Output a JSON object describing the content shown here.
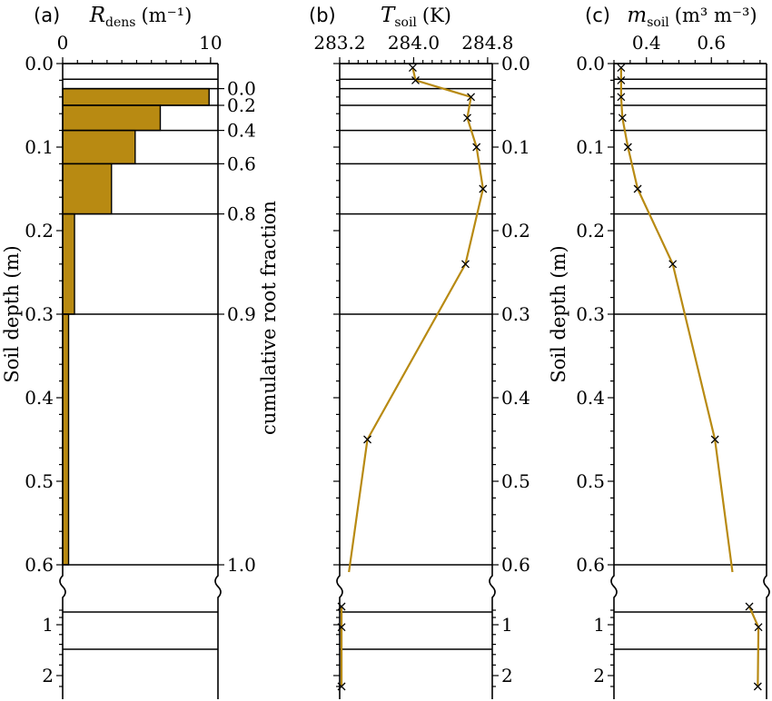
{
  "colors": {
    "accent": "#b88a12",
    "axis": "#000000"
  },
  "marker_symbol": "×",
  "chart_data": [
    {
      "panel": "(a)",
      "type": "bar",
      "title": "R_dens (m⁻¹)",
      "title_main": "R",
      "title_sub": "dens",
      "title_unit": "(m⁻¹)",
      "ylabel": "Soil depth (m)",
      "ylabel_right": "cumulative root fraction",
      "xticks": [
        "0",
        "10"
      ],
      "xlim": [
        0,
        10.5
      ],
      "layers": [
        {
          "top": 0.0,
          "bottom": 0.01,
          "value": 0.0
        },
        {
          "top": 0.01,
          "bottom": 0.03,
          "value": 0.0
        },
        {
          "top": 0.03,
          "bottom": 0.05,
          "value": 9.9
        },
        {
          "top": 0.05,
          "bottom": 0.08,
          "value": 6.6
        },
        {
          "top": 0.08,
          "bottom": 0.12,
          "value": 4.9
        },
        {
          "top": 0.12,
          "bottom": 0.18,
          "value": 3.3
        },
        {
          "top": 0.18,
          "bottom": 0.3,
          "value": 0.8
        },
        {
          "top": 0.3,
          "bottom": 0.6,
          "value": 0.4
        }
      ],
      "deep_layers": [
        0.6,
        1.0,
        1.5
      ],
      "cumulative_root_fraction": [
        {
          "depth": 0.03,
          "label": "0.0"
        },
        {
          "depth": 0.05,
          "label": "0.2"
        },
        {
          "depth": 0.08,
          "label": "0.4"
        },
        {
          "depth": 0.12,
          "label": "0.6"
        },
        {
          "depth": 0.18,
          "label": "0.8"
        },
        {
          "depth": 0.3,
          "label": "0.9"
        },
        {
          "depth": 0.6,
          "label": "1.0"
        }
      ]
    },
    {
      "panel": "(b)",
      "type": "line",
      "title": "T_soil (K)",
      "title_main": "T",
      "title_sub": "soil",
      "title_unit": "(K)",
      "xticks": [
        283.2,
        284.0,
        284.8
      ],
      "xtick_labels": [
        "283.2",
        "284.0",
        "284.8"
      ],
      "xlim": [
        283.2,
        284.85
      ],
      "points": [
        {
          "depth": 0.005,
          "value": 283.99
        },
        {
          "depth": 0.02,
          "value": 284.02
        },
        {
          "depth": 0.04,
          "value": 284.62
        },
        {
          "depth": 0.065,
          "value": 284.58
        },
        {
          "depth": 0.1,
          "value": 284.68
        },
        {
          "depth": 0.15,
          "value": 284.75
        },
        {
          "depth": 0.24,
          "value": 284.56
        },
        {
          "depth": 0.45,
          "value": 283.5
        },
        {
          "depth": 0.75,
          "value": 283.22
        },
        {
          "depth": 1.05,
          "value": 283.22
        },
        {
          "depth": 2.2,
          "value": 283.22
        }
      ]
    },
    {
      "panel": "(c)",
      "type": "line",
      "title": "m_soil (m³ m⁻³)",
      "title_main": "m",
      "title_sub": "soil",
      "title_unit": "(m³ m⁻³)",
      "ylabel": "Soil depth (m)",
      "xticks": [
        0.4,
        0.6
      ],
      "xtick_labels": [
        "0.4",
        "0.6"
      ],
      "xlim": [
        0.3,
        0.77
      ],
      "points": [
        {
          "depth": 0.005,
          "value": 0.322
        },
        {
          "depth": 0.02,
          "value": 0.322
        },
        {
          "depth": 0.04,
          "value": 0.322
        },
        {
          "depth": 0.065,
          "value": 0.326
        },
        {
          "depth": 0.1,
          "value": 0.343
        },
        {
          "depth": 0.15,
          "value": 0.373
        },
        {
          "depth": 0.24,
          "value": 0.481
        },
        {
          "depth": 0.45,
          "value": 0.611
        },
        {
          "depth": 0.75,
          "value": 0.717
        },
        {
          "depth": 1.05,
          "value": 0.745
        },
        {
          "depth": 2.2,
          "value": 0.743
        }
      ]
    }
  ],
  "depth_axis": {
    "linear_ticks": [
      "0.0",
      "0.1",
      "0.2",
      "0.3",
      "0.4",
      "0.5",
      "0.6"
    ],
    "deep_ticks": [
      "1",
      "2"
    ]
  }
}
